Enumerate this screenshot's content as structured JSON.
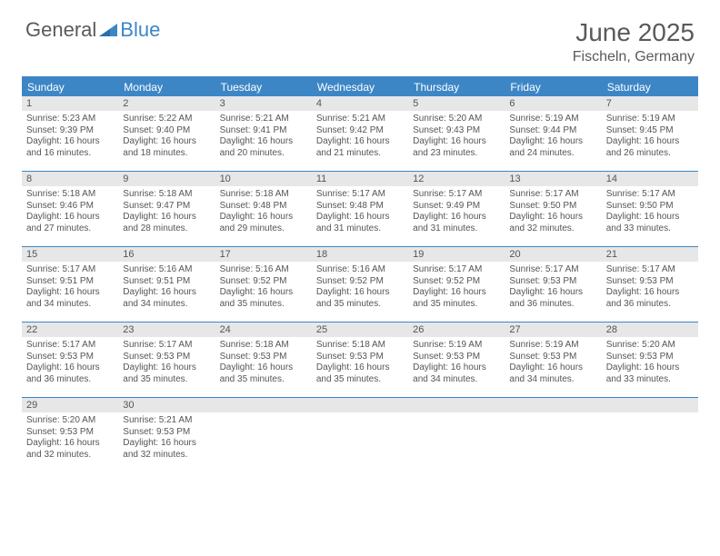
{
  "brand": {
    "part1": "General",
    "part2": "Blue"
  },
  "title": "June 2025",
  "location": "Fischeln, Germany",
  "colors": {
    "accent": "#3d86c6",
    "header_text": "#5a5a5a",
    "daynum_bg": "#e7e7e7",
    "body_text": "#555"
  },
  "typography": {
    "title_fontsize": 28,
    "location_fontsize": 16,
    "dayhead_fontsize": 12,
    "cell_fontsize": 10
  },
  "layout": {
    "columns": 7,
    "rows": 5
  },
  "day_names": [
    "Sunday",
    "Monday",
    "Tuesday",
    "Wednesday",
    "Thursday",
    "Friday",
    "Saturday"
  ],
  "days": [
    {
      "n": "1",
      "sunrise": "5:23 AM",
      "sunset": "9:39 PM",
      "daylight": "16 hours and 16 minutes."
    },
    {
      "n": "2",
      "sunrise": "5:22 AM",
      "sunset": "9:40 PM",
      "daylight": "16 hours and 18 minutes."
    },
    {
      "n": "3",
      "sunrise": "5:21 AM",
      "sunset": "9:41 PM",
      "daylight": "16 hours and 20 minutes."
    },
    {
      "n": "4",
      "sunrise": "5:21 AM",
      "sunset": "9:42 PM",
      "daylight": "16 hours and 21 minutes."
    },
    {
      "n": "5",
      "sunrise": "5:20 AM",
      "sunset": "9:43 PM",
      "daylight": "16 hours and 23 minutes."
    },
    {
      "n": "6",
      "sunrise": "5:19 AM",
      "sunset": "9:44 PM",
      "daylight": "16 hours and 24 minutes."
    },
    {
      "n": "7",
      "sunrise": "5:19 AM",
      "sunset": "9:45 PM",
      "daylight": "16 hours and 26 minutes."
    },
    {
      "n": "8",
      "sunrise": "5:18 AM",
      "sunset": "9:46 PM",
      "daylight": "16 hours and 27 minutes."
    },
    {
      "n": "9",
      "sunrise": "5:18 AM",
      "sunset": "9:47 PM",
      "daylight": "16 hours and 28 minutes."
    },
    {
      "n": "10",
      "sunrise": "5:18 AM",
      "sunset": "9:48 PM",
      "daylight": "16 hours and 29 minutes."
    },
    {
      "n": "11",
      "sunrise": "5:17 AM",
      "sunset": "9:48 PM",
      "daylight": "16 hours and 31 minutes."
    },
    {
      "n": "12",
      "sunrise": "5:17 AM",
      "sunset": "9:49 PM",
      "daylight": "16 hours and 31 minutes."
    },
    {
      "n": "13",
      "sunrise": "5:17 AM",
      "sunset": "9:50 PM",
      "daylight": "16 hours and 32 minutes."
    },
    {
      "n": "14",
      "sunrise": "5:17 AM",
      "sunset": "9:50 PM",
      "daylight": "16 hours and 33 minutes."
    },
    {
      "n": "15",
      "sunrise": "5:17 AM",
      "sunset": "9:51 PM",
      "daylight": "16 hours and 34 minutes."
    },
    {
      "n": "16",
      "sunrise": "5:16 AM",
      "sunset": "9:51 PM",
      "daylight": "16 hours and 34 minutes."
    },
    {
      "n": "17",
      "sunrise": "5:16 AM",
      "sunset": "9:52 PM",
      "daylight": "16 hours and 35 minutes."
    },
    {
      "n": "18",
      "sunrise": "5:16 AM",
      "sunset": "9:52 PM",
      "daylight": "16 hours and 35 minutes."
    },
    {
      "n": "19",
      "sunrise": "5:17 AM",
      "sunset": "9:52 PM",
      "daylight": "16 hours and 35 minutes."
    },
    {
      "n": "20",
      "sunrise": "5:17 AM",
      "sunset": "9:53 PM",
      "daylight": "16 hours and 36 minutes."
    },
    {
      "n": "21",
      "sunrise": "5:17 AM",
      "sunset": "9:53 PM",
      "daylight": "16 hours and 36 minutes."
    },
    {
      "n": "22",
      "sunrise": "5:17 AM",
      "sunset": "9:53 PM",
      "daylight": "16 hours and 36 minutes."
    },
    {
      "n": "23",
      "sunrise": "5:17 AM",
      "sunset": "9:53 PM",
      "daylight": "16 hours and 35 minutes."
    },
    {
      "n": "24",
      "sunrise": "5:18 AM",
      "sunset": "9:53 PM",
      "daylight": "16 hours and 35 minutes."
    },
    {
      "n": "25",
      "sunrise": "5:18 AM",
      "sunset": "9:53 PM",
      "daylight": "16 hours and 35 minutes."
    },
    {
      "n": "26",
      "sunrise": "5:19 AM",
      "sunset": "9:53 PM",
      "daylight": "16 hours and 34 minutes."
    },
    {
      "n": "27",
      "sunrise": "5:19 AM",
      "sunset": "9:53 PM",
      "daylight": "16 hours and 34 minutes."
    },
    {
      "n": "28",
      "sunrise": "5:20 AM",
      "sunset": "9:53 PM",
      "daylight": "16 hours and 33 minutes."
    },
    {
      "n": "29",
      "sunrise": "5:20 AM",
      "sunset": "9:53 PM",
      "daylight": "16 hours and 32 minutes."
    },
    {
      "n": "30",
      "sunrise": "5:21 AM",
      "sunset": "9:53 PM",
      "daylight": "16 hours and 32 minutes."
    }
  ],
  "labels": {
    "sunrise": "Sunrise:",
    "sunset": "Sunset:",
    "daylight": "Daylight:"
  }
}
